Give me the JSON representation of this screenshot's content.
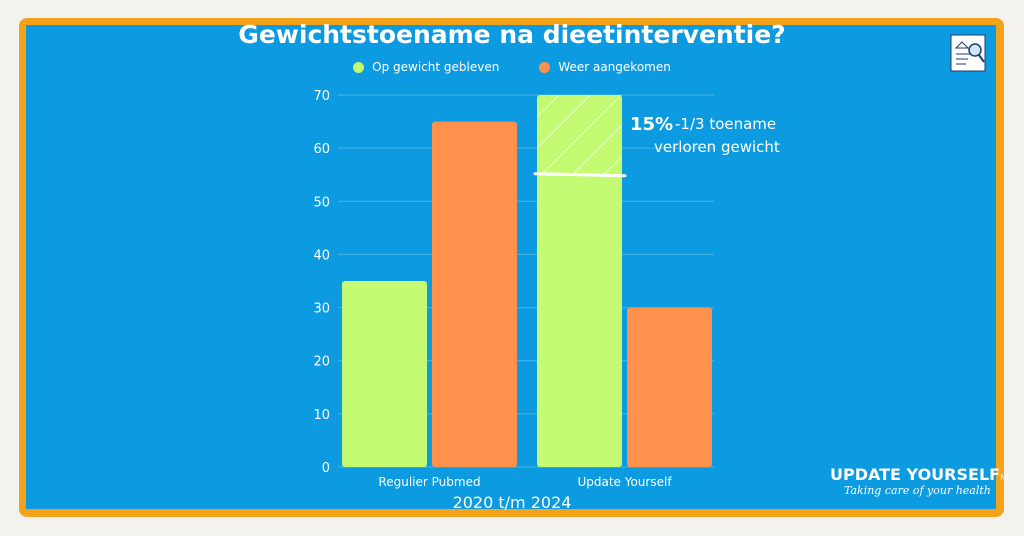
{
  "chart_data": {
    "type": "bar",
    "title": "Gewichtstoename na dieetinterventie?",
    "categories": [
      "Regulier Pubmed",
      "Update Yourself"
    ],
    "series": [
      {
        "name": "Op gewicht gebleven",
        "values": [
          35,
          70
        ],
        "color": "#c3fa72"
      },
      {
        "name": "Weer aangekomen",
        "values": [
          65,
          30
        ],
        "color": "#ff914d"
      }
    ],
    "highlight": {
      "category": "Update Yourself",
      "series": "Op gewicht gebleven",
      "from": 55,
      "to": 70
    },
    "xlabel": "2020 t/m 2024",
    "ylabel": "",
    "ylim": [
      0,
      70
    ],
    "yticks": [
      0,
      10,
      20,
      30,
      40,
      50,
      60,
      70
    ],
    "grid": true,
    "legend": "top",
    "annotation": {
      "value": "15%",
      "line1": "-1/3 toename",
      "line2": "verloren gewicht"
    }
  },
  "colors": {
    "background": "#0c9be0",
    "border": "#f5a21b"
  },
  "logo": {
    "name": "UPDATE YOURSELF",
    "suffix": "NL",
    "tagline": "Taking care of your health"
  },
  "icons": {
    "top_right": "document-search-icon"
  }
}
